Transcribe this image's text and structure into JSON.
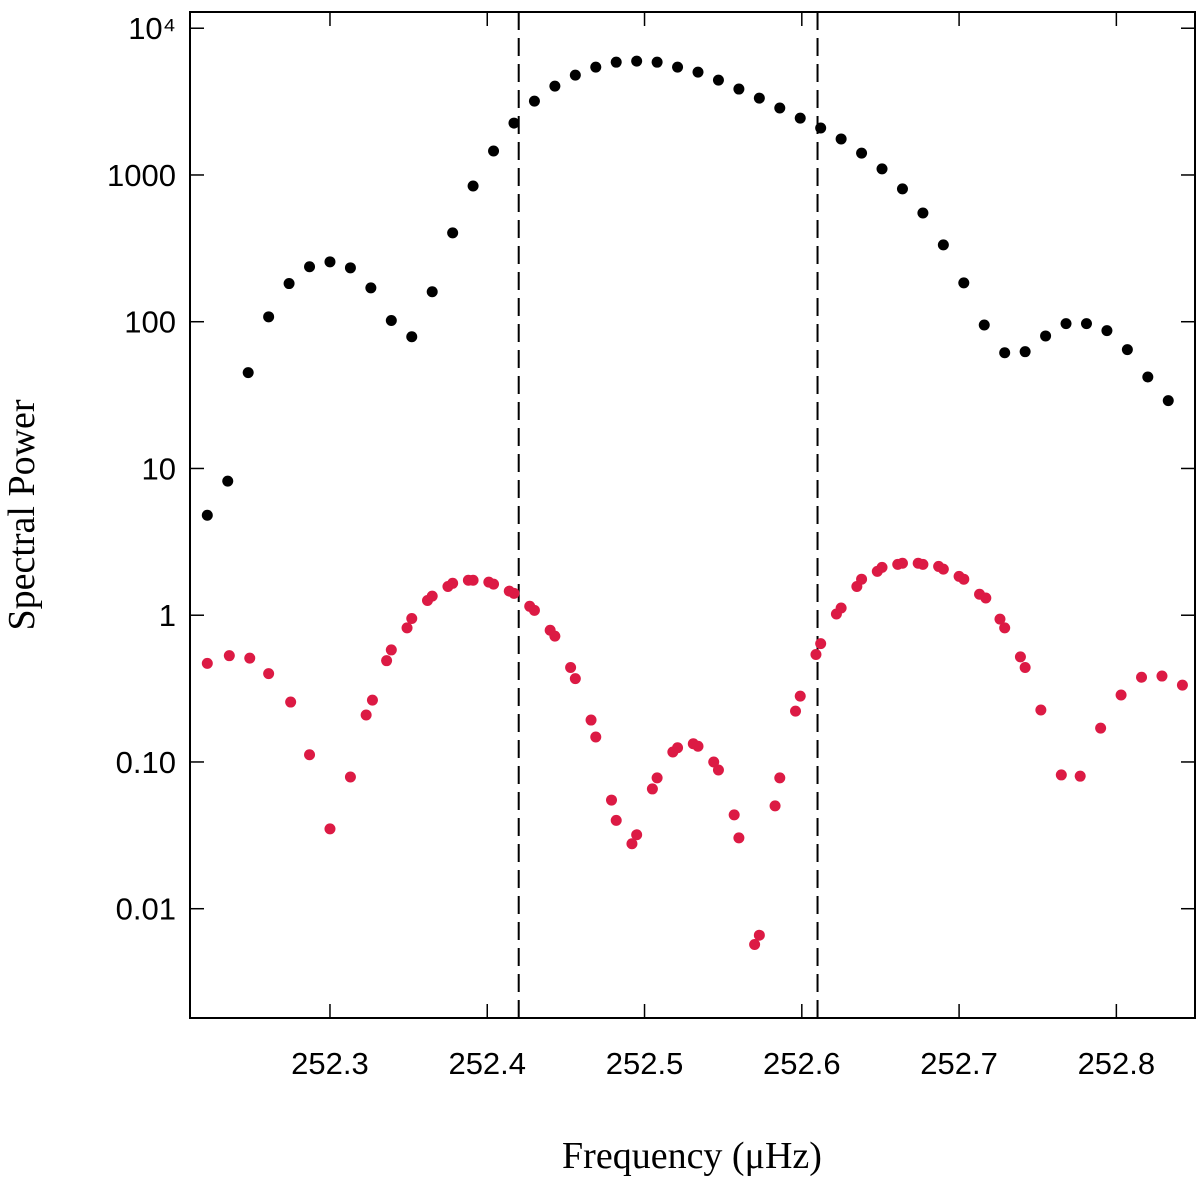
{
  "chart_data": {
    "type": "scatter",
    "xlabel": "Frequency (μHz)",
    "ylabel": "Spectral Power",
    "xlim": [
      252.211,
      252.85
    ],
    "ylim": [
      0.0018,
      12900
    ],
    "log_y": true,
    "xticks": [
      252.3,
      252.4,
      252.5,
      252.6,
      252.7,
      252.8
    ],
    "yticks": [
      {
        "value": 10000,
        "label": "10⁴"
      },
      1000,
      100,
      10,
      1,
      {
        "value": 0.1,
        "label": "0.10"
      },
      0.01
    ],
    "vlines": [
      252.42,
      252.61
    ],
    "series": [
      {
        "color": "#000000",
        "x": [
          252.222,
          252.235,
          252.248,
          252.261,
          252.274,
          252.287,
          252.3,
          252.313,
          252.326,
          252.339,
          252.352,
          252.365,
          252.378,
          252.391,
          252.404,
          252.417,
          252.43,
          252.443,
          252.456,
          252.469,
          252.482,
          252.495,
          252.508,
          252.521,
          252.534,
          252.547,
          252.56,
          252.573,
          252.586,
          252.599,
          252.612,
          252.625,
          252.638,
          252.651,
          252.664,
          252.677,
          252.69,
          252.703,
          252.716,
          252.729,
          252.742,
          252.755,
          252.768,
          252.781,
          252.794,
          252.807,
          252.82,
          252.833
        ],
        "values": [
          4.8,
          8.2,
          45,
          108,
          182,
          237,
          256,
          233,
          170,
          102,
          79,
          160,
          403,
          841,
          1456,
          2258,
          3186,
          4030,
          4790,
          5430,
          5870,
          5970,
          5870,
          5430,
          5020,
          4430,
          3850,
          3340,
          2860,
          2440,
          2090,
          1760,
          1410,
          1100,
          804,
          551,
          334,
          184,
          95,
          61.5,
          62.5,
          80,
          97,
          97,
          87,
          64.5,
          42,
          29
        ]
      },
      {
        "color": "#dc1a44",
        "x": [
          252.222,
          252.236,
          252.249,
          252.261,
          252.275,
          252.287,
          252.3,
          252.313,
          252.323,
          252.327,
          252.336,
          252.339,
          252.349,
          252.352,
          252.362,
          252.365,
          252.375,
          252.378,
          252.388,
          252.391,
          252.401,
          252.404,
          252.414,
          252.417,
          252.427,
          252.43,
          252.44,
          252.443,
          252.453,
          252.456,
          252.466,
          252.469,
          252.479,
          252.482,
          252.492,
          252.495,
          252.505,
          252.508,
          252.518,
          252.521,
          252.531,
          252.534,
          252.544,
          252.547,
          252.557,
          252.56,
          252.57,
          252.573,
          252.583,
          252.586,
          252.596,
          252.599,
          252.609,
          252.612,
          252.622,
          252.625,
          252.635,
          252.638,
          252.648,
          252.651,
          252.661,
          252.664,
          252.674,
          252.677,
          252.687,
          252.69,
          252.7,
          252.703,
          252.713,
          252.717,
          252.726,
          252.729,
          252.739,
          252.742,
          252.752,
          252.765,
          252.777,
          252.79,
          252.803,
          252.816,
          252.829,
          252.842
        ],
        "values": [
          0.47,
          0.53,
          0.51,
          0.4,
          0.256,
          0.112,
          0.035,
          0.079,
          0.209,
          0.264,
          0.49,
          0.58,
          0.82,
          0.95,
          1.26,
          1.35,
          1.57,
          1.65,
          1.73,
          1.73,
          1.68,
          1.63,
          1.46,
          1.41,
          1.15,
          1.08,
          0.79,
          0.72,
          0.44,
          0.37,
          0.193,
          0.148,
          0.055,
          0.04,
          0.0277,
          0.0319,
          0.0655,
          0.0779,
          0.117,
          0.125,
          0.133,
          0.128,
          0.1,
          0.0882,
          0.0436,
          0.0304,
          0.0057,
          0.0066,
          0.0502,
          0.0779,
          0.222,
          0.281,
          0.54,
          0.64,
          1.02,
          1.12,
          1.57,
          1.76,
          1.99,
          2.12,
          2.22,
          2.26,
          2.26,
          2.22,
          2.15,
          2.06,
          1.84,
          1.76,
          1.39,
          1.31,
          0.94,
          0.82,
          0.52,
          0.44,
          0.226,
          0.0816,
          0.08,
          0.17,
          0.286,
          0.378,
          0.385,
          0.334
        ]
      }
    ]
  }
}
